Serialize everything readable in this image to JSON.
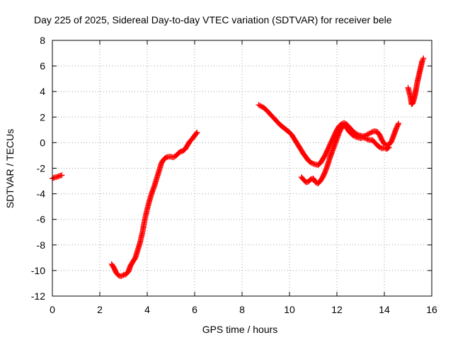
{
  "chart_data": {
    "type": "scatter",
    "title": "Day 225 of 2025, Sidereal Day-to-day VTEC variation (SDTVAR) for receiver bele",
    "xlabel": "GPS time / hours",
    "ylabel": "SDTVAR / TECUs",
    "xlim": [
      0,
      16
    ],
    "ylim": [
      -12,
      8
    ],
    "grid": true,
    "xticks": [
      0,
      2,
      4,
      6,
      8,
      10,
      12,
      14,
      16
    ],
    "yticks": [
      -12,
      -10,
      -8,
      -6,
      -4,
      -2,
      0,
      2,
      4,
      6,
      8
    ],
    "marker": "+",
    "color": "#ff0000",
    "series": [
      {
        "name": "SDTVAR",
        "segments": [
          [
            [
              0.0,
              -2.8
            ],
            [
              0.1,
              -2.72
            ],
            [
              0.2,
              -2.68
            ],
            [
              0.3,
              -2.6
            ],
            [
              0.4,
              -2.55
            ]
          ],
          [
            [
              2.5,
              -9.5
            ],
            [
              2.6,
              -9.8
            ],
            [
              2.7,
              -10.2
            ],
            [
              2.8,
              -10.4
            ],
            [
              2.9,
              -10.45
            ],
            [
              3.0,
              -10.35
            ],
            [
              3.1,
              -10.3
            ],
            [
              3.2,
              -10.1
            ],
            [
              3.3,
              -9.6
            ],
            [
              3.4,
              -9.3
            ],
            [
              3.5,
              -9.0
            ],
            [
              3.6,
              -8.4
            ],
            [
              3.7,
              -7.8
            ],
            [
              3.8,
              -7.0
            ],
            [
              3.9,
              -6.0
            ],
            [
              4.0,
              -5.2
            ],
            [
              4.1,
              -4.5
            ],
            [
              4.2,
              -3.9
            ],
            [
              4.3,
              -3.4
            ],
            [
              4.4,
              -2.8
            ],
            [
              4.5,
              -2.2
            ],
            [
              4.6,
              -1.6
            ],
            [
              4.7,
              -1.3
            ],
            [
              4.8,
              -1.15
            ],
            [
              4.9,
              -1.1
            ],
            [
              5.0,
              -1.1
            ],
            [
              5.1,
              -1.15
            ],
            [
              5.2,
              -1.05
            ],
            [
              5.3,
              -0.85
            ],
            [
              5.4,
              -0.7
            ],
            [
              5.5,
              -0.65
            ],
            [
              5.6,
              -0.5
            ],
            [
              5.7,
              -0.2
            ],
            [
              5.8,
              0.1
            ],
            [
              5.9,
              0.3
            ],
            [
              6.0,
              0.55
            ],
            [
              6.1,
              0.8
            ]
          ],
          [
            [
              8.7,
              2.95
            ],
            [
              8.8,
              2.85
            ],
            [
              8.9,
              2.75
            ],
            [
              9.0,
              2.6
            ],
            [
              9.1,
              2.4
            ],
            [
              9.2,
              2.2
            ],
            [
              9.3,
              2.0
            ],
            [
              9.4,
              1.8
            ],
            [
              9.5,
              1.6
            ],
            [
              9.6,
              1.4
            ],
            [
              9.7,
              1.25
            ],
            [
              9.8,
              1.1
            ],
            [
              9.9,
              0.95
            ],
            [
              10.0,
              0.8
            ],
            [
              10.1,
              0.6
            ],
            [
              10.2,
              0.3
            ],
            [
              10.3,
              0.0
            ],
            [
              10.4,
              -0.3
            ],
            [
              10.5,
              -0.6
            ],
            [
              10.6,
              -0.9
            ],
            [
              10.7,
              -1.15
            ],
            [
              10.8,
              -1.4
            ],
            [
              10.9,
              -1.55
            ],
            [
              11.0,
              -1.65
            ],
            [
              11.1,
              -1.7
            ],
            [
              11.2,
              -1.75
            ],
            [
              11.3,
              -1.6
            ],
            [
              11.4,
              -1.3
            ],
            [
              11.5,
              -1.0
            ],
            [
              11.6,
              -0.6
            ],
            [
              11.7,
              -0.2
            ],
            [
              11.8,
              0.2
            ],
            [
              11.9,
              0.6
            ],
            [
              12.0,
              1.0
            ],
            [
              12.1,
              1.3
            ],
            [
              12.2,
              1.45
            ],
            [
              12.3,
              1.55
            ],
            [
              12.4,
              1.45
            ],
            [
              12.5,
              1.25
            ],
            [
              12.6,
              1.05
            ],
            [
              12.7,
              0.85
            ],
            [
              12.8,
              0.7
            ],
            [
              12.9,
              0.6
            ],
            [
              13.0,
              0.55
            ],
            [
              13.1,
              0.5
            ],
            [
              13.2,
              0.55
            ],
            [
              13.3,
              0.65
            ],
            [
              13.4,
              0.75
            ],
            [
              13.5,
              0.85
            ],
            [
              13.6,
              0.9
            ],
            [
              13.7,
              0.85
            ],
            [
              13.8,
              0.6
            ],
            [
              13.9,
              0.2
            ],
            [
              14.0,
              -0.1
            ],
            [
              14.1,
              -0.2
            ],
            [
              14.2,
              -0.15
            ],
            [
              14.3,
              0.1
            ],
            [
              14.4,
              0.6
            ],
            [
              14.5,
              1.1
            ],
            [
              14.6,
              1.5
            ]
          ],
          [
            [
              10.5,
              -2.7
            ],
            [
              10.6,
              -2.9
            ],
            [
              10.7,
              -3.1
            ],
            [
              10.8,
              -3.05
            ],
            [
              10.9,
              -2.85
            ],
            [
              11.0,
              -2.8
            ],
            [
              11.1,
              -3.1
            ],
            [
              11.2,
              -3.2
            ],
            [
              11.3,
              -3.0
            ],
            [
              11.4,
              -2.7
            ],
            [
              11.5,
              -2.3
            ],
            [
              11.6,
              -1.8
            ],
            [
              11.7,
              -1.2
            ],
            [
              11.8,
              -0.7
            ],
            [
              11.9,
              -0.2
            ],
            [
              12.0,
              0.3
            ],
            [
              12.1,
              0.8
            ],
            [
              12.2,
              1.2
            ],
            [
              12.3,
              1.35
            ],
            [
              12.4,
              1.2
            ],
            [
              12.5,
              0.9
            ],
            [
              12.6,
              0.7
            ],
            [
              12.7,
              0.55
            ],
            [
              12.8,
              0.45
            ],
            [
              12.9,
              0.4
            ],
            [
              13.0,
              0.35
            ],
            [
              13.1,
              0.4
            ],
            [
              13.2,
              0.35
            ],
            [
              13.3,
              0.25
            ],
            [
              13.4,
              0.2
            ],
            [
              13.5,
              0.2
            ],
            [
              13.6,
              0.0
            ],
            [
              13.7,
              -0.2
            ],
            [
              13.8,
              -0.35
            ],
            [
              13.9,
              -0.45
            ],
            [
              14.0,
              -0.4
            ],
            [
              14.1,
              -0.5
            ],
            [
              14.2,
              -0.35
            ]
          ],
          [
            [
              15.0,
              4.3
            ],
            [
              15.1,
              3.6
            ],
            [
              15.15,
              3.0
            ],
            [
              15.2,
              3.1
            ],
            [
              15.25,
              3.4
            ],
            [
              15.3,
              3.8
            ],
            [
              15.35,
              4.3
            ],
            [
              15.4,
              4.8
            ],
            [
              15.45,
              5.2
            ],
            [
              15.5,
              5.6
            ],
            [
              15.55,
              6.0
            ],
            [
              15.6,
              6.4
            ],
            [
              15.65,
              6.6
            ]
          ]
        ]
      }
    ]
  }
}
